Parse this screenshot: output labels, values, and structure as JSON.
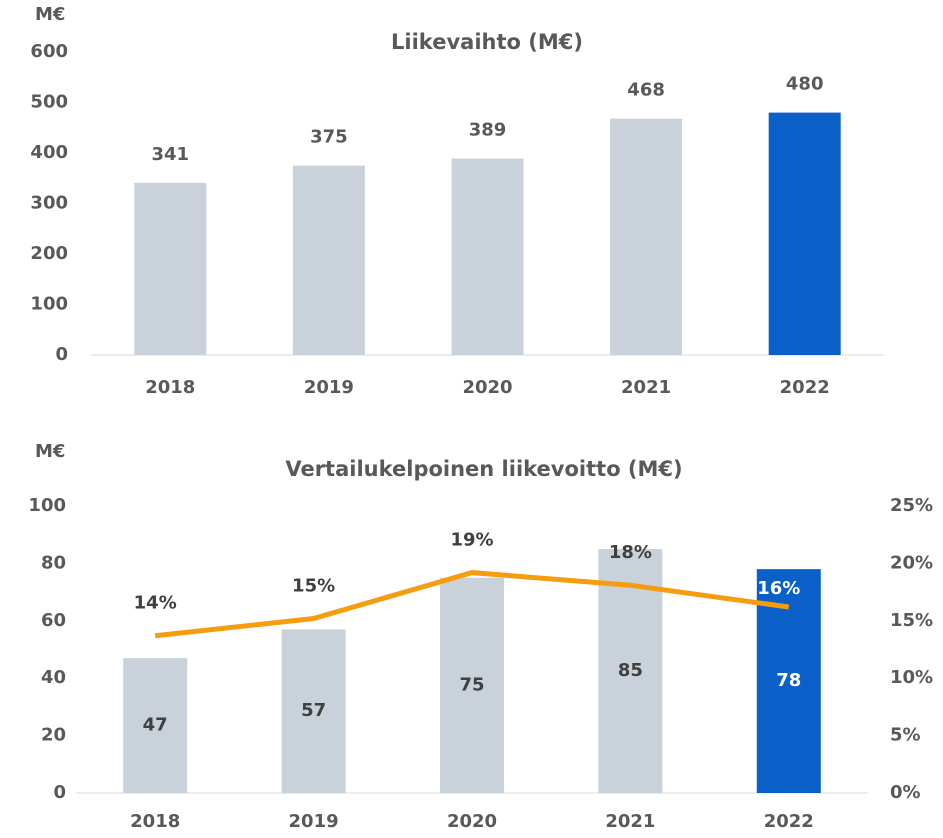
{
  "chart_data": [
    {
      "type": "bar",
      "title": "Liikevaihto (M€)",
      "y_label": "M€",
      "categories": [
        "2018",
        "2019",
        "2020",
        "2021",
        "2022"
      ],
      "values": [
        341,
        375,
        389,
        468,
        480
      ],
      "colors": [
        "#c9d1da",
        "#c9d1da",
        "#c9d1da",
        "#c9d1da",
        "#0a5fc9"
      ],
      "label_colors": [
        "#595959",
        "#595959",
        "#595959",
        "#595959",
        "#595959"
      ],
      "ylim": [
        0,
        600
      ],
      "yticks": [
        0,
        100,
        200,
        300,
        400,
        500,
        600
      ],
      "grid": false
    },
    {
      "type": "combo",
      "title": "Vertailukelpoinen liikevoitto (M€)",
      "y_label": "M€",
      "categories": [
        "2018",
        "2019",
        "2020",
        "2021",
        "2022"
      ],
      "series": [
        {
          "type": "bar",
          "values": [
            47,
            57,
            75,
            85,
            78
          ],
          "colors": [
            "#c9d1da",
            "#c9d1da",
            "#c9d1da",
            "#c9d1da",
            "#0a5fc9"
          ],
          "label_colors": [
            "#404040",
            "#404040",
            "#404040",
            "#404040",
            "#ffffff"
          ]
        },
        {
          "type": "line",
          "axis": "y2",
          "color": "#f59c0f",
          "values": [
            13.7,
            15.2,
            19.2,
            18.1,
            16.2
          ],
          "value_labels": [
            "14%",
            "15%",
            "19%",
            "18%",
            "16%"
          ],
          "label_colors": [
            "#404040",
            "#404040",
            "#404040",
            "#404040",
            "#ffffff"
          ]
        }
      ],
      "ylim": [
        0,
        100
      ],
      "yticks": [
        0,
        20,
        40,
        60,
        80,
        100
      ],
      "y2lim": [
        0,
        25
      ],
      "y2ticks": [
        {
          "value": 0,
          "label": "0%"
        },
        {
          "value": 5,
          "label": "5%"
        },
        {
          "value": 10,
          "label": "10%"
        },
        {
          "value": 15,
          "label": "15%"
        },
        {
          "value": 20,
          "label": "20%"
        },
        {
          "value": 25,
          "label": "25%"
        }
      ],
      "grid": false
    }
  ]
}
